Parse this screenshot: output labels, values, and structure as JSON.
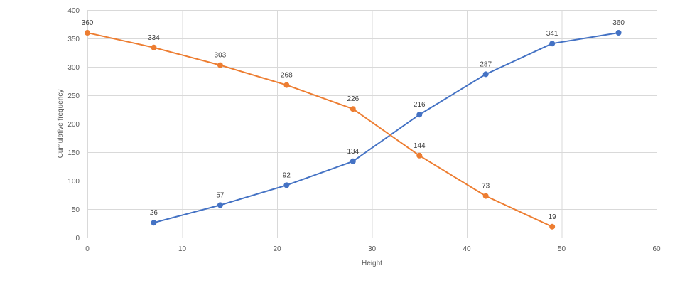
{
  "chart_data": {
    "type": "line",
    "title": "",
    "xlabel": "Height",
    "ylabel": "Cumulative frequency",
    "xlim": [
      0,
      60
    ],
    "ylim": [
      0,
      400
    ],
    "xticks": [
      0,
      10,
      20,
      30,
      40,
      50,
      60
    ],
    "yticks": [
      0,
      50,
      100,
      150,
      200,
      250,
      300,
      350,
      400
    ],
    "grid": true,
    "legend": "none",
    "series": [
      {
        "color": "#4472C4",
        "points": [
          {
            "x": 7,
            "y": 26
          },
          {
            "x": 14,
            "y": 57
          },
          {
            "x": 21,
            "y": 92
          },
          {
            "x": 28,
            "y": 134
          },
          {
            "x": 35,
            "y": 216
          },
          {
            "x": 42,
            "y": 287
          },
          {
            "x": 49,
            "y": 341
          },
          {
            "x": 56,
            "y": 360
          }
        ]
      },
      {
        "color": "#ED7D31",
        "points": [
          {
            "x": 0,
            "y": 360
          },
          {
            "x": 7,
            "y": 334
          },
          {
            "x": 14,
            "y": 303
          },
          {
            "x": 21,
            "y": 268
          },
          {
            "x": 28,
            "y": 226
          },
          {
            "x": 35,
            "y": 144
          },
          {
            "x": 42,
            "y": 73
          },
          {
            "x": 49,
            "y": 19
          }
        ]
      }
    ],
    "colors": {
      "grid": "#D9D9D9",
      "axis": "#BFBFBF",
      "text": "#595959"
    }
  }
}
